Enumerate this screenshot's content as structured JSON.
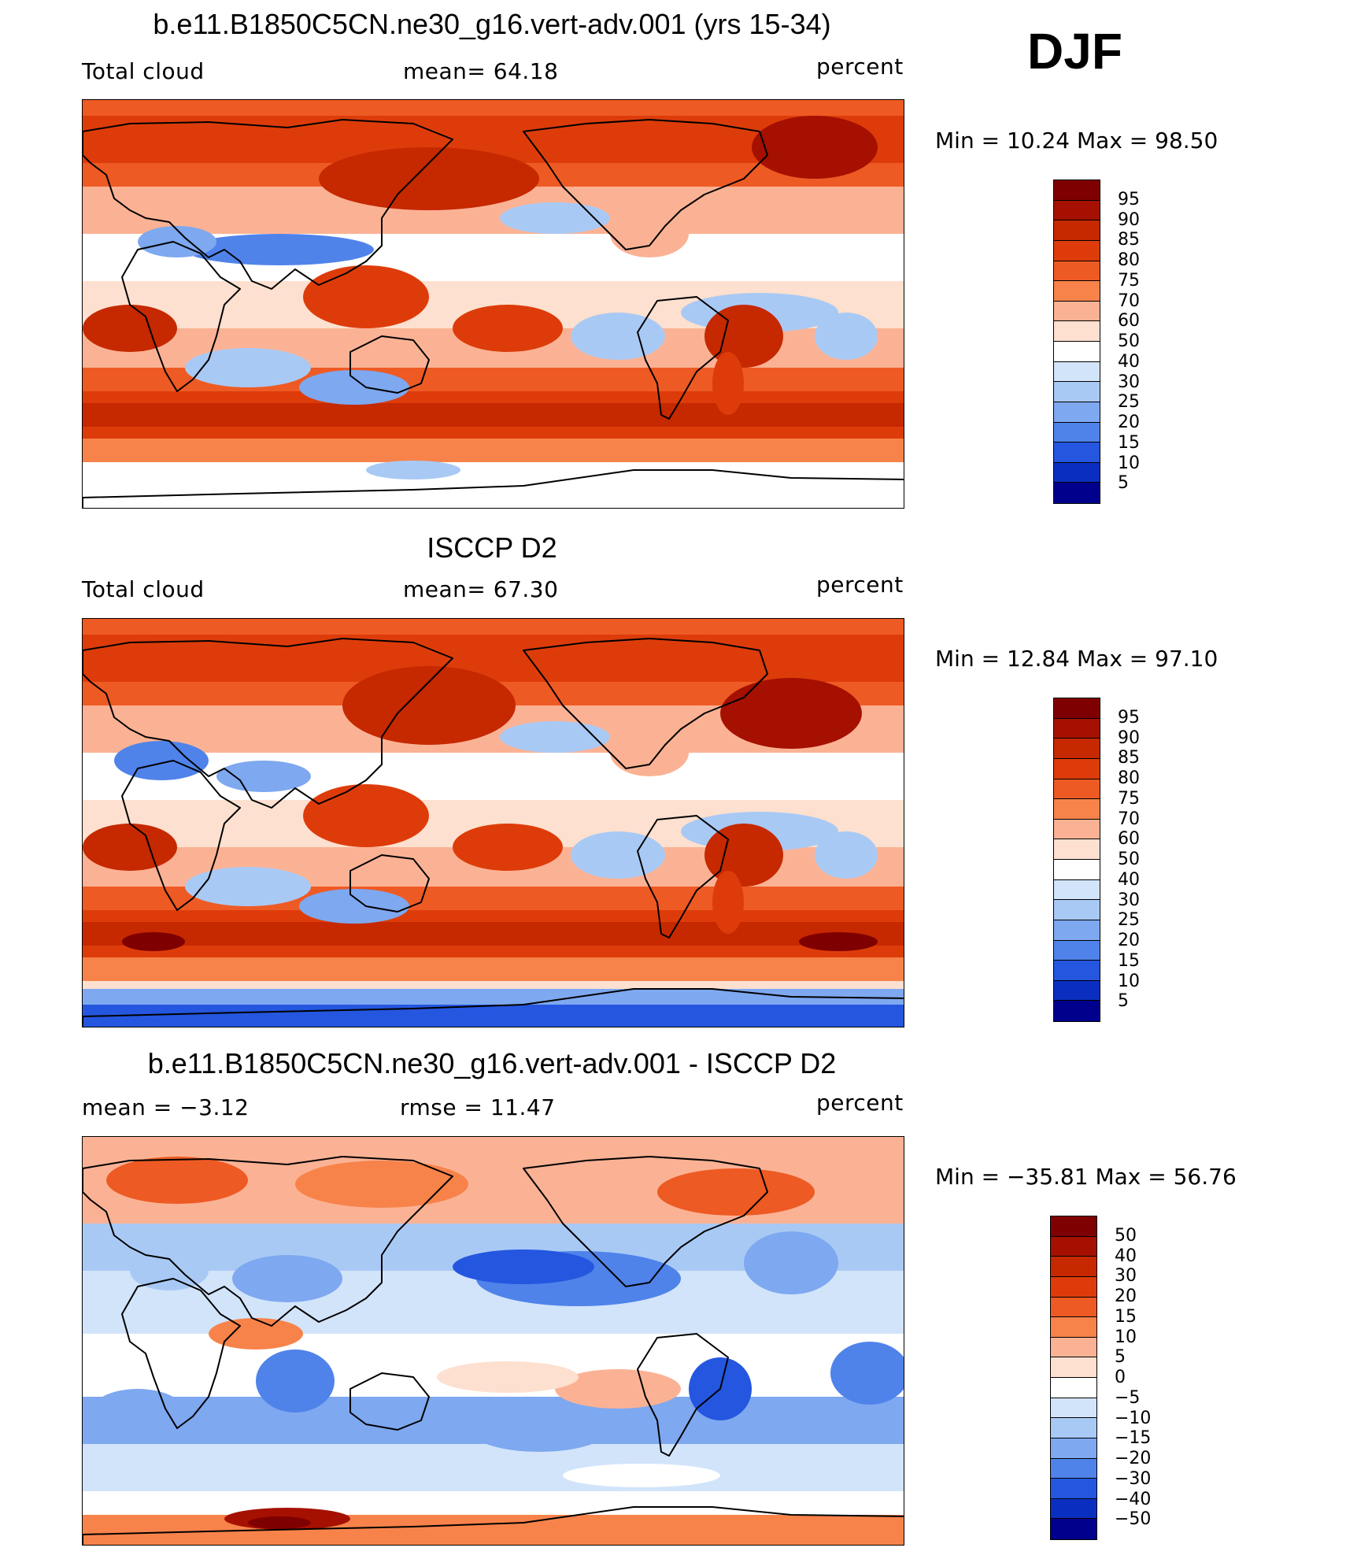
{
  "season": "DJF",
  "panels": [
    {
      "title": "b.e11.B1850C5CN.ne30_g16.vert-adv.001 (yrs 15-34)",
      "left_label": "Total cloud",
      "center_label": "mean=   64.18",
      "right_label": "percent",
      "minmax": "Min =   10.24  Max =   98.50",
      "scale": "abs",
      "colorbar_labels": [
        "95",
        "90",
        "85",
        "80",
        "75",
        "70",
        "60",
        "50",
        "40",
        "30",
        "25",
        "20",
        "15",
        "10",
        "5"
      ]
    },
    {
      "title": "ISCCP D2",
      "left_label": "Total cloud",
      "center_label": "mean=   67.30",
      "right_label": "percent",
      "minmax": "Min =   12.84  Max =   97.10",
      "scale": "abs",
      "colorbar_labels": [
        "95",
        "90",
        "85",
        "80",
        "75",
        "70",
        "60",
        "50",
        "40",
        "30",
        "25",
        "20",
        "15",
        "10",
        "5"
      ]
    },
    {
      "title": "b.e11.B1850C5CN.ne30_g16.vert-adv.001 - ISCCP D2",
      "left_label": "mean =   −3.12",
      "center_label": "rmse =   11.47",
      "right_label": "percent",
      "minmax": "Min = −35.81  Max =   56.76",
      "scale": "diff",
      "colorbar_labels": [
        "50",
        "40",
        "30",
        "20",
        "15",
        "10",
        "5",
        "0",
        "−5",
        "−10",
        "−15",
        "−20",
        "−30",
        "−40",
        "−50"
      ]
    }
  ],
  "colors": {
    "scale_top_to_bottom": [
      "#7f0000",
      "#a51000",
      "#c62800",
      "#dd3c0a",
      "#ee5a24",
      "#f7834a",
      "#fbb294",
      "#fde0cf",
      "#ffffff",
      "#d2e4fa",
      "#a9c9f5",
      "#7ea8f0",
      "#4f83ea",
      "#2556e0",
      "#0a2fc0",
      "#00008c"
    ],
    "coast": "#000000"
  }
}
